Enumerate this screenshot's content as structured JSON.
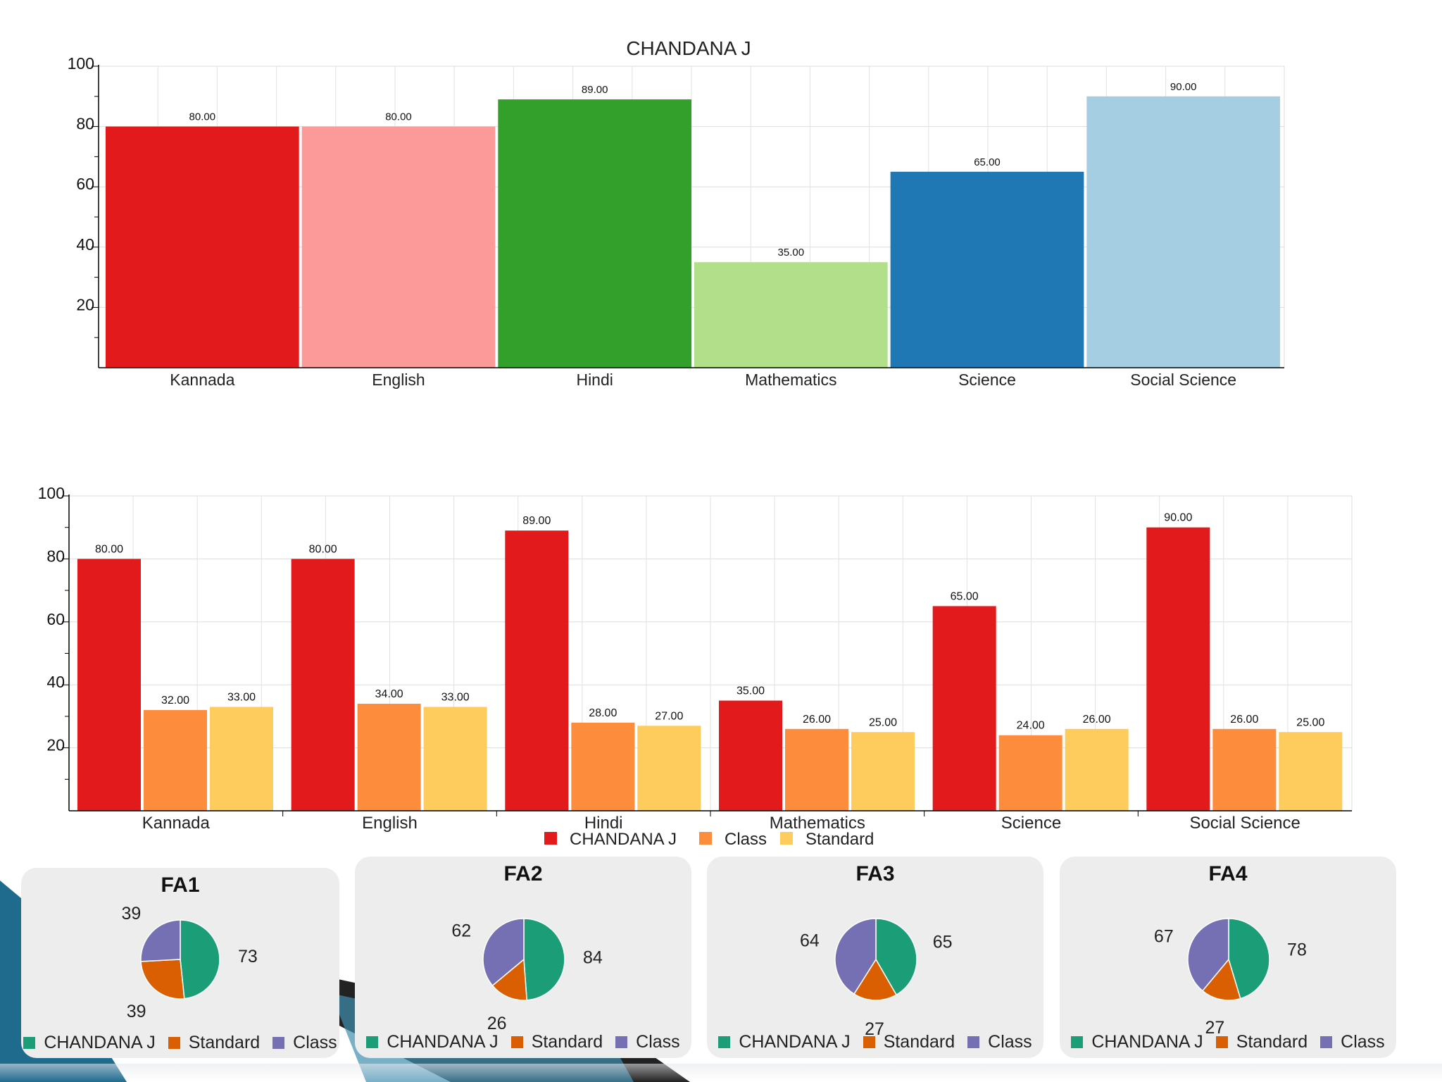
{
  "colors": {
    "student": "#e31a1c",
    "class": "#fd8d3c",
    "standard": "#fecc5c",
    "pie_student": "#1b9e77",
    "pie_standard": "#d95f02",
    "pie_class": "#7570b3",
    "card_bg": "#eeedee"
  },
  "chart_data": [
    {
      "type": "bar",
      "title": "CHANDANA J",
      "categories": [
        "Kannada",
        "English",
        "Hindi",
        "Mathematics",
        "Science",
        "Social Science"
      ],
      "values": [
        80,
        80,
        89,
        35,
        65,
        90
      ],
      "value_labels": [
        "80.00",
        "80.00",
        "89.00",
        "35.00",
        "65.00",
        "90.00"
      ],
      "bar_colors": [
        "#e31a1c",
        "#fb9a99",
        "#33a02c",
        "#b2df8a",
        "#1f78b4",
        "#a6cee3"
      ],
      "ylim": [
        0,
        100
      ],
      "yticks": [
        20,
        40,
        60,
        80,
        100
      ],
      "grid": true,
      "legend": "none"
    },
    {
      "type": "bar",
      "categories": [
        "Kannada",
        "English",
        "Hindi",
        "Mathematics",
        "Science",
        "Social Science"
      ],
      "series": [
        {
          "name": "CHANDANA J",
          "color": "#e31a1c",
          "values": [
            80,
            80,
            89,
            35,
            65,
            90
          ],
          "labels": [
            "80.00",
            "80.00",
            "89.00",
            "35.00",
            "65.00",
            "90.00"
          ]
        },
        {
          "name": "Class",
          "color": "#fd8d3c",
          "values": [
            32,
            34,
            28,
            26,
            24,
            26
          ],
          "labels": [
            "32.00",
            "34.00",
            "28.00",
            "26.00",
            "24.00",
            "26.00"
          ]
        },
        {
          "name": "Standard",
          "color": "#fecc5c",
          "values": [
            33,
            33,
            27,
            25,
            26,
            25
          ],
          "labels": [
            "33.00",
            "33.00",
            "27.00",
            "25.00",
            "26.00",
            "25.00"
          ]
        }
      ],
      "ylim": [
        0,
        100
      ],
      "yticks": [
        20,
        40,
        60,
        80,
        100
      ],
      "grid": true,
      "legend": "bottom-center"
    },
    {
      "type": "pie",
      "title": "FA1",
      "slices": [
        {
          "name": "CHANDANA J",
          "value": 73,
          "label": "73"
        },
        {
          "name": "Standard",
          "value": 39,
          "label": "39"
        },
        {
          "name": "Class",
          "value": 39,
          "label": "39"
        }
      ],
      "legend": "bottom"
    },
    {
      "type": "pie",
      "title": "FA2",
      "slices": [
        {
          "name": "CHANDANA J",
          "value": 84,
          "label": "84"
        },
        {
          "name": "Standard",
          "value": 26,
          "label": "26"
        },
        {
          "name": "Class",
          "value": 62,
          "label": "62"
        }
      ],
      "legend": "bottom"
    },
    {
      "type": "pie",
      "title": "FA3",
      "slices": [
        {
          "name": "CHANDANA J",
          "value": 65,
          "label": "65"
        },
        {
          "name": "Standard",
          "value": 27,
          "label": "27"
        },
        {
          "name": "Class",
          "value": 64,
          "label": "64"
        }
      ],
      "legend": "bottom"
    },
    {
      "type": "pie",
      "title": "FA4",
      "slices": [
        {
          "name": "CHANDANA J",
          "value": 78,
          "label": "78"
        },
        {
          "name": "Standard",
          "value": 27,
          "label": "27"
        },
        {
          "name": "Class",
          "value": 67,
          "label": "67"
        }
      ],
      "legend": "bottom"
    }
  ]
}
